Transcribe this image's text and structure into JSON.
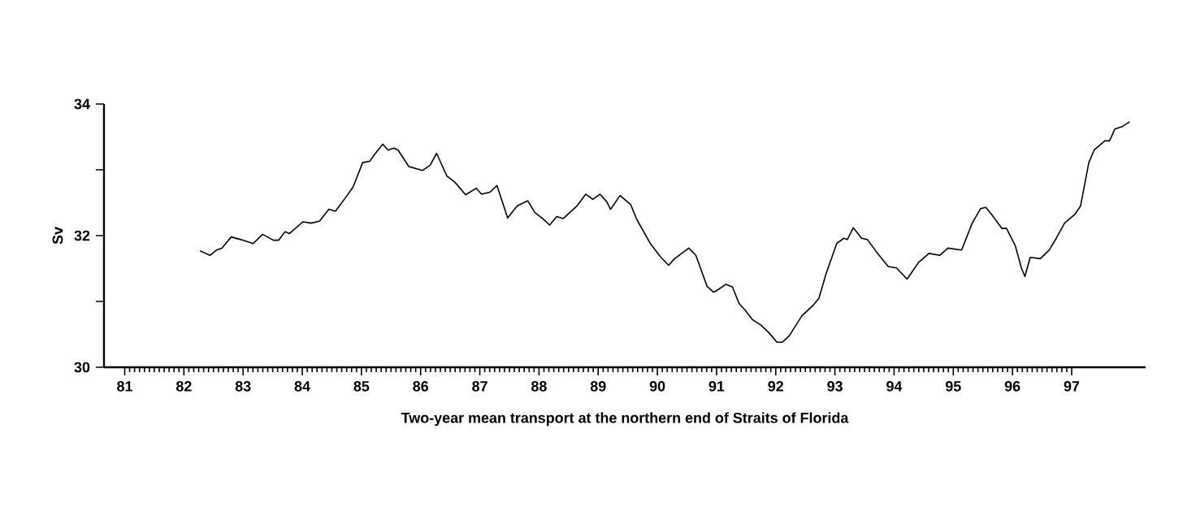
{
  "chart_data": {
    "type": "line",
    "xlabel": "Two-year mean transport at the northern end of Straits of Florida",
    "ylabel": "Sv",
    "x": [
      82.27,
      82.44,
      82.55,
      82.64,
      82.8,
      82.96,
      83.17,
      83.33,
      83.51,
      83.6,
      83.71,
      83.78,
      84.01,
      84.15,
      84.29,
      84.45,
      84.56,
      84.75,
      84.86,
      85.02,
      85.14,
      85.22,
      85.36,
      85.45,
      85.55,
      85.62,
      85.8,
      86.03,
      86.16,
      86.27,
      86.44,
      86.58,
      86.76,
      86.94,
      87.03,
      87.17,
      87.29,
      87.47,
      87.63,
      87.81,
      87.93,
      88.06,
      88.18,
      88.3,
      88.41,
      88.64,
      88.79,
      88.91,
      89.03,
      89.14,
      89.21,
      89.37,
      89.55,
      89.65,
      89.88,
      90.06,
      90.19,
      90.29,
      90.53,
      90.65,
      90.84,
      90.95,
      91.01,
      91.16,
      91.27,
      91.38,
      91.48,
      91.61,
      91.75,
      91.89,
      92.02,
      92.11,
      92.23,
      92.44,
      92.64,
      92.73,
      92.85,
      93.03,
      93.15,
      93.21,
      93.31,
      93.45,
      93.55,
      93.72,
      93.9,
      94.04,
      94.22,
      94.41,
      94.59,
      94.77,
      94.91,
      95.14,
      95.32,
      95.46,
      95.55,
      95.64,
      95.82,
      95.9,
      96.05,
      96.15,
      96.21,
      96.3,
      96.47,
      96.62,
      96.74,
      96.88,
      97.06,
      97.15,
      97.29,
      97.38,
      97.56,
      97.64,
      97.73,
      97.84,
      97.98
    ],
    "series": [
      {
        "color": "#000000",
        "values": [
          31.77,
          31.7,
          31.78,
          31.81,
          31.98,
          31.94,
          31.88,
          32.02,
          31.93,
          31.93,
          32.06,
          32.03,
          32.21,
          32.19,
          32.22,
          32.4,
          32.37,
          32.6,
          32.74,
          33.11,
          33.13,
          33.23,
          33.39,
          33.3,
          33.33,
          33.3,
          33.05,
          32.99,
          33.07,
          33.25,
          32.91,
          32.81,
          32.62,
          32.72,
          32.63,
          32.66,
          32.76,
          32.27,
          32.45,
          32.53,
          32.35,
          32.26,
          32.16,
          32.29,
          32.26,
          32.45,
          32.63,
          32.55,
          32.63,
          32.52,
          32.4,
          32.61,
          32.47,
          32.25,
          31.88,
          31.67,
          31.55,
          31.65,
          31.81,
          31.7,
          31.23,
          31.14,
          31.17,
          31.26,
          31.22,
          30.97,
          30.87,
          30.72,
          30.64,
          30.52,
          30.38,
          30.38,
          30.48,
          30.78,
          30.95,
          31.05,
          31.42,
          31.88,
          31.96,
          31.94,
          32.12,
          31.96,
          31.94,
          31.73,
          31.53,
          31.51,
          31.34,
          31.59,
          31.73,
          31.7,
          31.81,
          31.78,
          32.19,
          32.41,
          32.43,
          32.33,
          32.11,
          32.11,
          31.84,
          31.51,
          31.38,
          31.67,
          31.65,
          31.78,
          31.96,
          32.19,
          32.33,
          32.45,
          33.11,
          33.3,
          33.44,
          33.44,
          33.62,
          33.65,
          33.73
        ]
      }
    ],
    "xlim": [
      80.65,
      98.25
    ],
    "ylim": [
      30,
      34
    ],
    "xticks": [
      81,
      82,
      83,
      84,
      85,
      86,
      87,
      88,
      89,
      90,
      91,
      92,
      93,
      94,
      95,
      96,
      97
    ],
    "yticks": [
      30,
      {
        "value": 31,
        "label": null
      },
      32,
      {
        "value": 33,
        "label": null
      },
      34
    ],
    "grid": false,
    "marker": "none",
    "line_style": "solid"
  }
}
